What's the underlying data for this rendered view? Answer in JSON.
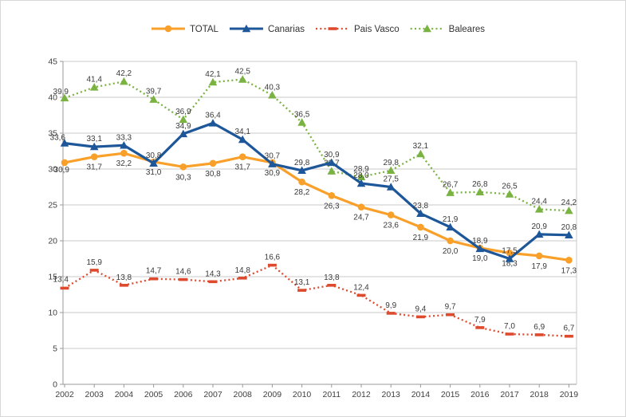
{
  "chart_data": {
    "type": "line",
    "title": "",
    "xlabel": "",
    "ylabel": "",
    "x": [
      2002,
      2003,
      2004,
      2005,
      2006,
      2007,
      2008,
      2009,
      2010,
      2011,
      2012,
      2013,
      2014,
      2015,
      2016,
      2017,
      2018,
      2019
    ],
    "ylim": [
      0,
      45
    ],
    "y_ticks": [
      0,
      5,
      10,
      15,
      20,
      25,
      30,
      35,
      40,
      45
    ],
    "grid": true,
    "legend_position": "top-center",
    "decimal_separator": "comma",
    "colors": {
      "grid": "#c9c9c9",
      "axis": "#9a9a9a",
      "label_text": "#3a3a3a"
    },
    "series": [
      {
        "name": "TOTAL",
        "color": "#F9A02B",
        "line": "solid",
        "marker": "circle",
        "values": [
          30.9,
          31.7,
          32.2,
          31.0,
          30.3,
          30.8,
          31.7,
          30.9,
          28.2,
          26.3,
          24.7,
          23.6,
          21.9,
          20.0,
          19.0,
          18.3,
          17.9,
          17.3
        ]
      },
      {
        "name": "Canarias",
        "color": "#1E5799",
        "line": "solid",
        "marker": "triangle",
        "values": [
          33.6,
          33.1,
          33.3,
          30.8,
          34.9,
          36.4,
          34.1,
          30.7,
          29.8,
          30.9,
          28.0,
          27.5,
          23.8,
          21.9,
          18.9,
          17.5,
          20.9,
          20.8
        ]
      },
      {
        "name": "Pais Vasco",
        "color": "#DE4A2E",
        "line": "dotted",
        "marker": "dash",
        "values": [
          13.4,
          15.9,
          13.8,
          14.7,
          14.6,
          14.3,
          14.8,
          16.6,
          13.1,
          13.8,
          12.4,
          9.9,
          9.4,
          9.7,
          7.9,
          7.0,
          6.9,
          6.7
        ]
      },
      {
        "name": "Baleares",
        "color": "#7AB342",
        "line": "dotted",
        "marker": "triangle",
        "values": [
          39.9,
          41.4,
          42.2,
          39.7,
          36.9,
          42.1,
          42.5,
          40.3,
          36.5,
          29.7,
          28.9,
          29.8,
          32.1,
          26.7,
          26.8,
          26.5,
          24.4,
          24.2
        ]
      }
    ]
  }
}
